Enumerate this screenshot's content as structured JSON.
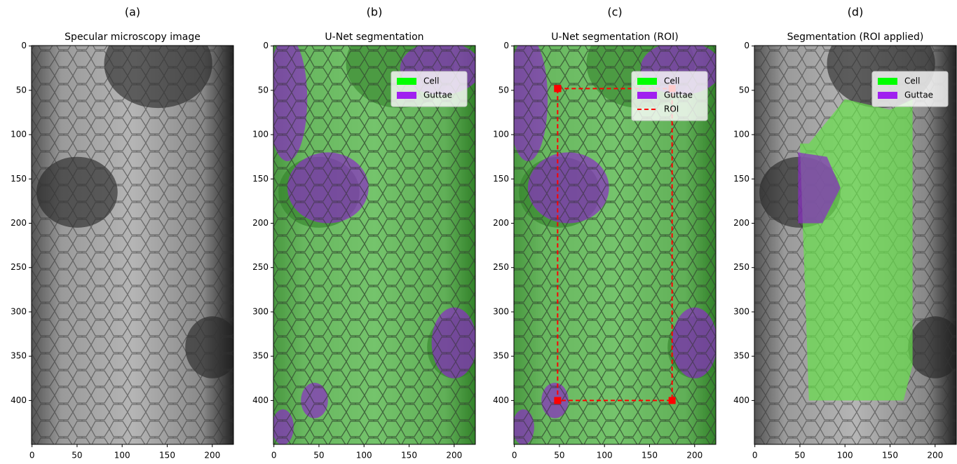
{
  "chart_data": [
    {
      "type": "image",
      "panel": "(a)",
      "title": "Specular microscopy image",
      "xlim": [
        -0.5,
        223.5
      ],
      "ylim": [
        449.5,
        -0.5
      ],
      "xticks": [
        0,
        50,
        100,
        150,
        200
      ],
      "yticks": [
        0,
        50,
        100,
        150,
        200,
        250,
        300,
        350,
        400
      ]
    },
    {
      "type": "image",
      "panel": "(b)",
      "title": "U-Net segmentation",
      "xlim": [
        -0.5,
        223.5
      ],
      "ylim": [
        449.5,
        -0.5
      ],
      "xticks": [
        0,
        50,
        100,
        150,
        200
      ],
      "yticks": [
        0,
        50,
        100,
        150,
        200,
        250,
        300,
        350,
        400
      ],
      "legend": "upper right",
      "series": [
        {
          "name": "Cell",
          "color": "#00ff00"
        },
        {
          "name": "Guttae",
          "color": "#a020f0"
        }
      ]
    },
    {
      "type": "image",
      "panel": "(c)",
      "title": "U-Net segmentation (ROI)",
      "xlim": [
        -0.5,
        223.5
      ],
      "ylim": [
        449.5,
        -0.5
      ],
      "xticks": [
        0,
        50,
        100,
        150,
        200
      ],
      "yticks": [
        0,
        50,
        100,
        150,
        200,
        250,
        300,
        350,
        400
      ],
      "legend": "upper right",
      "series": [
        {
          "name": "Cell",
          "color": "#00ff00"
        },
        {
          "name": "Guttae",
          "color": "#a020f0"
        },
        {
          "name": "ROI",
          "color": "#ff0000",
          "style": "dashed",
          "x": [
            48,
            175,
            175,
            48,
            48
          ],
          "values": [
            48,
            48,
            400,
            400,
            48
          ]
        }
      ]
    },
    {
      "type": "image",
      "panel": "(d)",
      "title": "Segmentation (ROI applied)",
      "xlim": [
        -0.5,
        223.5
      ],
      "ylim": [
        449.5,
        -0.5
      ],
      "xticks": [
        0,
        50,
        100,
        150,
        200
      ],
      "yticks": [
        0,
        50,
        100,
        150,
        200,
        250,
        300,
        350,
        400
      ],
      "legend": "upper right",
      "series": [
        {
          "name": "Cell",
          "color": "#00ff00"
        },
        {
          "name": "Guttae",
          "color": "#a020f0"
        }
      ]
    }
  ]
}
